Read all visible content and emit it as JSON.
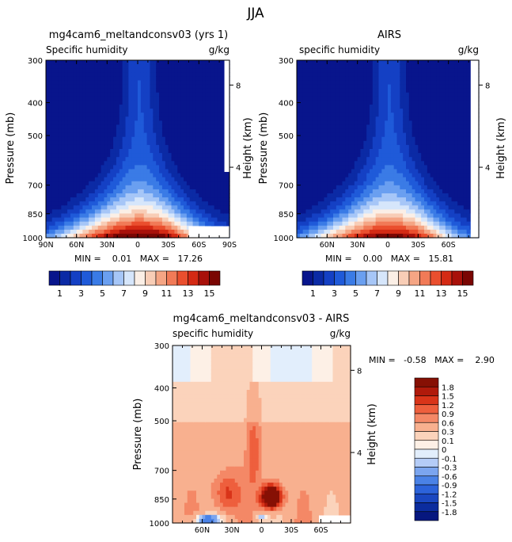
{
  "figure": {
    "title": "JJA"
  },
  "colors": {
    "abs_levels": [
      "#08158c",
      "#0b2aa5",
      "#1440c4",
      "#1f5ad9",
      "#3a7be6",
      "#6a9ff0",
      "#a6c6f7",
      "#d6e6fb",
      "#fbefe6",
      "#f8cdb6",
      "#f5a584",
      "#f17a57",
      "#ea4f2e",
      "#d42a14",
      "#a8110a",
      "#7a0603"
    ],
    "diff_levels": [
      "#06177f",
      "#0b2c9e",
      "#1a47c0",
      "#2c63da",
      "#4a82e6",
      "#7ba5ef",
      "#b4ccf7",
      "#e2eefc",
      "#fdf0e6",
      "#fbd3bb",
      "#f8b08f",
      "#f48866",
      "#ee5f3d",
      "#d93419",
      "#b01a0b",
      "#861004"
    ]
  },
  "panels": [
    {
      "id": "model",
      "title": "mg4cam6_meltandconsv03 (yrs 1)",
      "left_label": "Specific humidity",
      "right_label": "g/kg",
      "ylabel": "Pressure (mb)",
      "y2label": "Height (km)",
      "stats": "MIN =    0.01   MAX =   17.26",
      "xticks": [
        "90N",
        "60N",
        "30N",
        "0",
        "30S",
        "60S",
        "90S"
      ],
      "yticks": [
        "300",
        "400",
        "500",
        "700",
        "850",
        "1000"
      ],
      "y2ticks": [
        "8",
        "4"
      ],
      "colorbar_labels": [
        "1",
        "3",
        "5",
        "7",
        "9",
        "11",
        "13",
        "15"
      ]
    },
    {
      "id": "obs",
      "title": "AIRS",
      "left_label": "specific humidity",
      "right_label": "g/kg",
      "ylabel": "Pressure (mb)",
      "y2label": "Height (km)",
      "stats": "MIN =    0.00   MAX =   15.81",
      "xticks": [
        "60N",
        "30N",
        "0",
        "30S",
        "60S"
      ],
      "yticks": [
        "300",
        "400",
        "500",
        "700",
        "850",
        "1000"
      ],
      "y2ticks": [
        "8",
        "4"
      ],
      "colorbar_labels": [
        "1",
        "3",
        "5",
        "7",
        "9",
        "11",
        "13",
        "15"
      ]
    },
    {
      "id": "diff",
      "title": "mg4cam6_meltandconsv03 - AIRS",
      "left_label": "specific humidity",
      "right_label": "g/kg",
      "ylabel": "Pressure (mb)",
      "y2label": "Height (km)",
      "stats": "MIN =   -0.58   MAX =    2.90",
      "xticks": [
        "60N",
        "30N",
        "0",
        "30S",
        "60S"
      ],
      "yticks": [
        "300",
        "400",
        "500",
        "700",
        "850",
        "1000"
      ],
      "y2ticks": [
        "8",
        "4"
      ],
      "colorbar_labels": [
        "1.8",
        "1.5",
        "1.2",
        "0.9",
        "0.6",
        "0.3",
        "0.1",
        "0",
        "-0.1",
        "-0.3",
        "-0.6",
        "-0.9",
        "-1.2",
        "-1.5",
        "-1.8"
      ]
    }
  ],
  "chart_data": [
    {
      "type": "heatmap",
      "title": "mg4cam6_meltandconsv03 (yrs 1)",
      "xlabel": "",
      "ylabel": "Pressure (mb)",
      "y2label": "Height (km)",
      "x_range": [
        90,
        -90
      ],
      "y_range": [
        1000,
        300
      ],
      "units": "g/kg",
      "min": 0.01,
      "max": 17.26,
      "levels": [
        1,
        2,
        3,
        4,
        5,
        6,
        7,
        8,
        9,
        10,
        11,
        12,
        13,
        14,
        15
      ]
    },
    {
      "type": "heatmap",
      "title": "AIRS",
      "xlabel": "",
      "ylabel": "Pressure (mb)",
      "y2label": "Height (km)",
      "x_range": [
        90,
        -90
      ],
      "y_range": [
        1000,
        300
      ],
      "units": "g/kg",
      "min": 0.0,
      "max": 15.81,
      "levels": [
        1,
        2,
        3,
        4,
        5,
        6,
        7,
        8,
        9,
        10,
        11,
        12,
        13,
        14,
        15
      ]
    },
    {
      "type": "heatmap",
      "title": "mg4cam6_meltandconsv03 - AIRS",
      "xlabel": "",
      "ylabel": "Pressure (mb)",
      "y2label": "Height (km)",
      "x_range": [
        90,
        -90
      ],
      "y_range": [
        1000,
        300
      ],
      "units": "g/kg",
      "min": -0.58,
      "max": 2.9,
      "levels": [
        -1.8,
        -1.5,
        -1.2,
        -0.9,
        -0.6,
        -0.3,
        -0.1,
        0,
        0.1,
        0.3,
        0.6,
        0.9,
        1.2,
        1.5,
        1.8
      ]
    }
  ]
}
